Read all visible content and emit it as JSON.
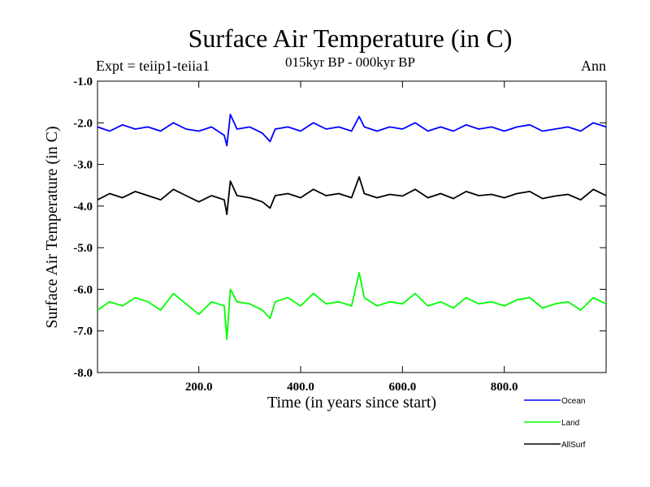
{
  "chart_data": {
    "type": "line",
    "title": "Surface Air Temperature (in C)",
    "subtitle": "015kyr BP - 000kyr BP",
    "left_label": "Expt = teiip1-teiia1",
    "right_label": "Ann",
    "xlabel": "Time (in years since start)",
    "ylabel": "Surface Air Temperature (in C)",
    "xlim": [
      1,
      1000
    ],
    "ylim": [
      -8.0,
      -1.0
    ],
    "x_ticks": [
      200,
      400,
      600,
      800
    ],
    "x_tick_labels": [
      "200.0",
      "400.0",
      "600.0",
      "800.0"
    ],
    "y_ticks": [
      -1,
      -2,
      -3,
      -4,
      -5,
      -6,
      -7,
      -8
    ],
    "y_tick_labels": [
      "-1.0",
      "-2.0",
      "-3.0",
      "-4.0",
      "-5.0",
      "-6.0",
      "-7.0",
      "-8.0"
    ],
    "grid": false,
    "legend_position": "bottom-right",
    "series": [
      {
        "name": "Ocean",
        "color": "#0000ff",
        "x": [
          1,
          25,
          50,
          75,
          100,
          125,
          150,
          175,
          200,
          225,
          250,
          255,
          262,
          275,
          300,
          325,
          340,
          350,
          375,
          400,
          425,
          450,
          475,
          500,
          515,
          525,
          550,
          575,
          600,
          625,
          650,
          675,
          700,
          725,
          750,
          775,
          800,
          825,
          850,
          875,
          900,
          925,
          950,
          975,
          1000
        ],
        "y": [
          -2.1,
          -2.2,
          -2.05,
          -2.15,
          -2.1,
          -2.2,
          -2.0,
          -2.15,
          -2.2,
          -2.1,
          -2.3,
          -2.55,
          -1.8,
          -2.15,
          -2.1,
          -2.25,
          -2.45,
          -2.15,
          -2.1,
          -2.2,
          -2.0,
          -2.15,
          -2.1,
          -2.2,
          -1.85,
          -2.1,
          -2.2,
          -2.1,
          -2.15,
          -2.0,
          -2.2,
          -2.1,
          -2.2,
          -2.05,
          -2.15,
          -2.1,
          -2.2,
          -2.1,
          -2.05,
          -2.2,
          -2.15,
          -2.1,
          -2.2,
          -2.0,
          -2.1
        ]
      },
      {
        "name": "Land",
        "color": "#00ff00",
        "x": [
          1,
          25,
          50,
          75,
          100,
          125,
          150,
          175,
          200,
          225,
          250,
          255,
          262,
          275,
          300,
          325,
          340,
          350,
          375,
          400,
          425,
          450,
          475,
          500,
          515,
          525,
          550,
          575,
          600,
          625,
          650,
          675,
          700,
          725,
          750,
          775,
          800,
          825,
          850,
          875,
          900,
          925,
          950,
          975,
          1000
        ],
        "y": [
          -6.5,
          -6.3,
          -6.4,
          -6.2,
          -6.3,
          -6.5,
          -6.1,
          -6.35,
          -6.6,
          -6.3,
          -6.4,
          -7.2,
          -6.0,
          -6.3,
          -6.35,
          -6.5,
          -6.7,
          -6.3,
          -6.2,
          -6.4,
          -6.1,
          -6.35,
          -6.3,
          -6.4,
          -5.6,
          -6.2,
          -6.4,
          -6.3,
          -6.35,
          -6.1,
          -6.4,
          -6.3,
          -6.45,
          -6.2,
          -6.35,
          -6.3,
          -6.4,
          -6.25,
          -6.2,
          -6.45,
          -6.35,
          -6.3,
          -6.5,
          -6.2,
          -6.35
        ]
      },
      {
        "name": "AllSurf",
        "color": "#000000",
        "x": [
          1,
          25,
          50,
          75,
          100,
          125,
          150,
          175,
          200,
          225,
          250,
          255,
          262,
          275,
          300,
          325,
          340,
          350,
          375,
          400,
          425,
          450,
          475,
          500,
          515,
          525,
          550,
          575,
          600,
          625,
          650,
          675,
          700,
          725,
          750,
          775,
          800,
          825,
          850,
          875,
          900,
          925,
          950,
          975,
          1000
        ],
        "y": [
          -3.85,
          -3.7,
          -3.8,
          -3.65,
          -3.75,
          -3.85,
          -3.6,
          -3.75,
          -3.9,
          -3.75,
          -3.85,
          -4.2,
          -3.4,
          -3.75,
          -3.8,
          -3.9,
          -4.05,
          -3.75,
          -3.7,
          -3.8,
          -3.6,
          -3.75,
          -3.7,
          -3.8,
          -3.3,
          -3.7,
          -3.8,
          -3.72,
          -3.76,
          -3.6,
          -3.8,
          -3.7,
          -3.82,
          -3.65,
          -3.75,
          -3.72,
          -3.8,
          -3.7,
          -3.65,
          -3.82,
          -3.76,
          -3.72,
          -3.85,
          -3.6,
          -3.75
        ]
      }
    ]
  }
}
